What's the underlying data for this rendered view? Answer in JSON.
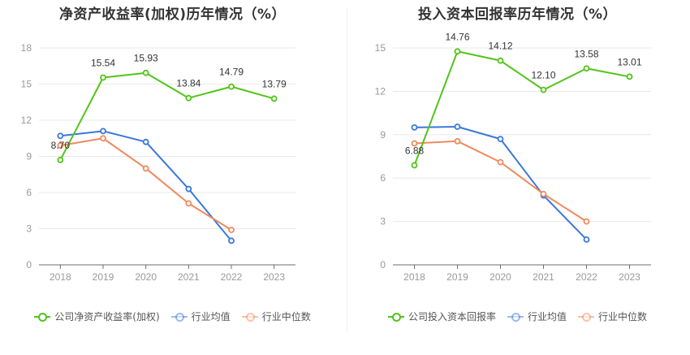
{
  "charts": [
    {
      "title": "净资产收益率(加权)历年情况（%）",
      "legend": [
        "公司净资产收益率(加权)",
        "行业均值",
        "行业中位数"
      ]
    },
    {
      "title": "投入资本回报率历年情况（%）",
      "legend": [
        "公司投入资本回报率",
        "行业均值",
        "行业中位数"
      ]
    }
  ],
  "colors": {
    "company": "#52c41a",
    "industry_mean": "#3b78d8",
    "industry_median": "#f08a5d",
    "grid": "#e8e8e8",
    "axis_text": "#999999",
    "label_text": "#333333"
  },
  "chart_data": [
    {
      "type": "line",
      "title": "净资产收益率(加权)历年情况（%）",
      "categories": [
        "2018",
        "2019",
        "2020",
        "2021",
        "2022",
        "2023"
      ],
      "ylim": [
        0,
        18
      ],
      "yticks": [
        0,
        3,
        6,
        9,
        12,
        15,
        18
      ],
      "grid": true,
      "legend_position": "bottom",
      "series": [
        {
          "name": "公司净资产收益率(加权)",
          "values": [
            8.7,
            15.54,
            15.93,
            13.84,
            14.79,
            13.79
          ],
          "labels": [
            "8.70",
            "15.54",
            "15.93",
            "13.84",
            "14.79",
            "13.79"
          ]
        },
        {
          "name": "行业均值",
          "values": [
            10.7,
            11.1,
            10.2,
            6.3,
            2.0,
            null
          ]
        },
        {
          "name": "行业中位数",
          "values": [
            9.9,
            10.5,
            8.0,
            5.1,
            2.9,
            null
          ]
        }
      ]
    },
    {
      "type": "line",
      "title": "投入资本回报率历年情况（%）",
      "categories": [
        "2018",
        "2019",
        "2020",
        "2021",
        "2022",
        "2023"
      ],
      "ylim": [
        0,
        15
      ],
      "yticks": [
        0,
        3,
        6,
        9,
        12,
        15
      ],
      "grid": true,
      "legend_position": "bottom",
      "series": [
        {
          "name": "公司投入资本回报率",
          "values": [
            6.88,
            14.76,
            14.12,
            12.1,
            13.58,
            13.01
          ],
          "labels": [
            "6.88",
            "14.76",
            "14.12",
            "12.10",
            "13.58",
            "13.01"
          ]
        },
        {
          "name": "行业均值",
          "values": [
            9.5,
            9.55,
            8.7,
            4.8,
            1.75,
            null
          ]
        },
        {
          "name": "行业中位数",
          "values": [
            8.4,
            8.55,
            7.1,
            4.9,
            3.0,
            null
          ]
        }
      ]
    }
  ]
}
